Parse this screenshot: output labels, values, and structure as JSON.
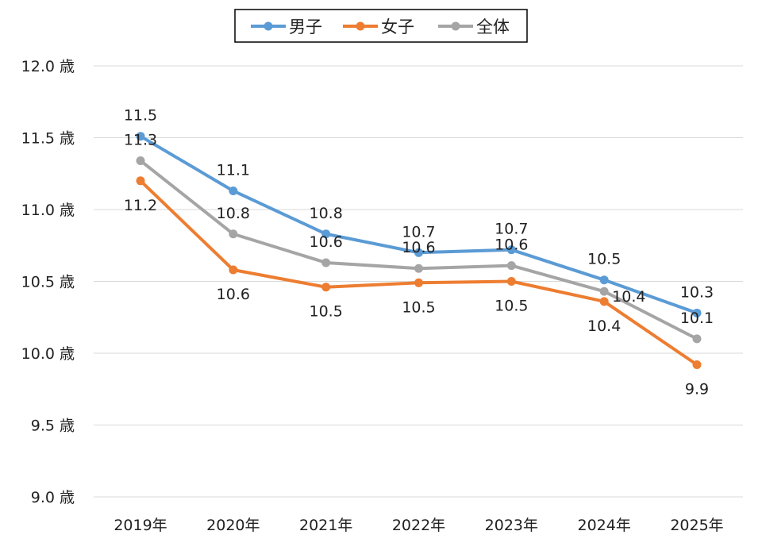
{
  "chart_data": {
    "type": "line",
    "title": "",
    "xlabel": "",
    "ylabel": "",
    "categories": [
      "2019年",
      "2020年",
      "2021年",
      "2022年",
      "2023年",
      "2024年",
      "2025年"
    ],
    "ylim": [
      9.0,
      12.0
    ],
    "yticks": [
      9.0,
      9.5,
      10.0,
      10.5,
      11.0,
      11.5,
      12.0
    ],
    "ytick_labels": [
      "9.0 歳",
      "9.5 歳",
      "10.0 歳",
      "10.5 歳",
      "11.0 歳",
      "11.5 歳",
      "12.0 歳"
    ],
    "grid": true,
    "legend": "top-center",
    "series": [
      {
        "name": "男子",
        "color": "#5B9BD5",
        "values": [
          11.51,
          11.13,
          10.83,
          10.7,
          10.72,
          10.51,
          10.28
        ],
        "labels": [
          "11.5",
          "11.1",
          "10.8",
          "10.7",
          "10.7",
          "10.5",
          "10.3"
        ]
      },
      {
        "name": "女子",
        "color": "#ED7D31",
        "values": [
          11.2,
          10.58,
          10.46,
          10.49,
          10.5,
          10.36,
          9.92
        ],
        "labels": [
          "11.2",
          "10.6",
          "10.5",
          "10.5",
          "10.5",
          "10.4",
          "9.9"
        ]
      },
      {
        "name": "全体",
        "color": "#A5A5A5",
        "values": [
          11.34,
          10.83,
          10.63,
          10.59,
          10.61,
          10.43,
          10.1
        ],
        "labels": [
          "11.3",
          "10.8",
          "10.6",
          "10.6",
          "10.6",
          "10.4",
          "10.1"
        ]
      }
    ]
  }
}
